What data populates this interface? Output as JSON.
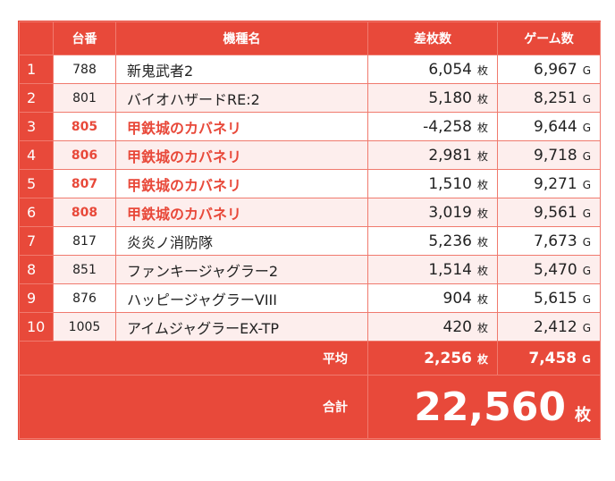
{
  "headers": {
    "rank": "",
    "number": "台番",
    "model": "機種名",
    "diff": "差枚数",
    "games": "ゲーム数"
  },
  "units": {
    "coin": "枚",
    "game": "G"
  },
  "rows": [
    {
      "rank": "1",
      "number": "788",
      "model": "新鬼武者2",
      "diff": "6,054",
      "games": "6,967",
      "highlight": false
    },
    {
      "rank": "2",
      "number": "801",
      "model": "バイオハザードRE:2",
      "diff": "5,180",
      "games": "8,251",
      "highlight": false
    },
    {
      "rank": "3",
      "number": "805",
      "model": "甲鉄城のカバネリ",
      "diff": "-4,258",
      "games": "9,644",
      "highlight": true
    },
    {
      "rank": "4",
      "number": "806",
      "model": "甲鉄城のカバネリ",
      "diff": "2,981",
      "games": "9,718",
      "highlight": true
    },
    {
      "rank": "5",
      "number": "807",
      "model": "甲鉄城のカバネリ",
      "diff": "1,510",
      "games": "9,271",
      "highlight": true
    },
    {
      "rank": "6",
      "number": "808",
      "model": "甲鉄城のカバネリ",
      "diff": "3,019",
      "games": "9,561",
      "highlight": true
    },
    {
      "rank": "7",
      "number": "817",
      "model": "炎炎ノ消防隊",
      "diff": "5,236",
      "games": "7,673",
      "highlight": false
    },
    {
      "rank": "8",
      "number": "851",
      "model": "ファンキージャグラー2",
      "diff": "1,514",
      "games": "5,470",
      "highlight": false
    },
    {
      "rank": "9",
      "number": "876",
      "model": "ハッピージャグラーVIII",
      "diff": "904",
      "games": "5,615",
      "highlight": false
    },
    {
      "rank": "10",
      "number": "1005",
      "model": "アイムジャグラーEX-TP",
      "diff": "420",
      "games": "2,412",
      "highlight": false
    }
  ],
  "average": {
    "label": "平均",
    "diff": "2,256",
    "games": "7,458"
  },
  "total": {
    "label": "合計",
    "diff": "22,560"
  },
  "colors": {
    "accent": "#e8493a",
    "stripe": "#fdeeed"
  }
}
